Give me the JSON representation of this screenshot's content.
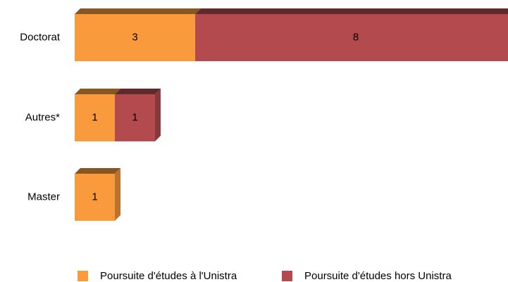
{
  "chart_data": {
    "type": "bar",
    "orientation": "horizontal",
    "stacked": true,
    "categories": [
      "Doctorat",
      "Autres*",
      "Master"
    ],
    "series": [
      {
        "name": "Poursuite d'études à l'Unistra",
        "color": "#f99a3c",
        "values": [
          3,
          1,
          1
        ]
      },
      {
        "name": "Poursuite d'études hors Unistra",
        "color": "#b34a4e",
        "values": [
          8,
          1,
          null
        ]
      }
    ],
    "legend": "bottom"
  }
}
